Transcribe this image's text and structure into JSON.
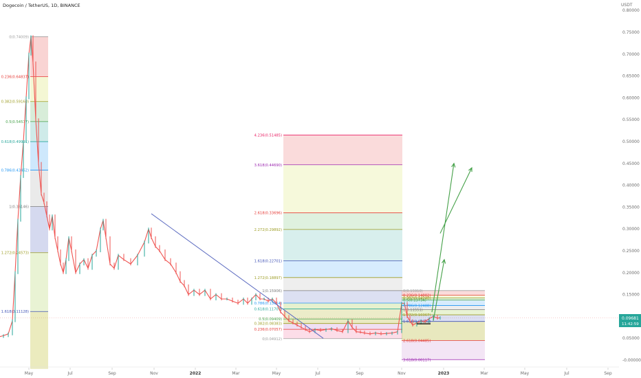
{
  "header": {
    "title": "Dogecoin / TetherUS, 1D, BINANCE"
  },
  "chart_data": {
    "type": "line",
    "currency": "USDT",
    "y_ticks": [
      "0.80000",
      "0.75000",
      "0.70000",
      "0.65000",
      "0.60000",
      "0.55000",
      "0.50000",
      "0.45000",
      "0.40000",
      "0.35000",
      "0.30000",
      "0.25000",
      "0.20000",
      "0.15000",
      "0.10000",
      "0.05000",
      "-0.00000"
    ],
    "ylim": [
      -0.008,
      0.8
    ],
    "x_ticks": [
      "May",
      "Jul",
      "Sep",
      "Nov",
      "2022",
      "Mar",
      "May",
      "Jul",
      "Sep",
      "Nov",
      "2023",
      "Mar",
      "May",
      "Jul",
      "Sep"
    ],
    "last_price": "0.09681",
    "countdown": "11:42:59",
    "price_path": [
      [
        0,
        0.054
      ],
      [
        5,
        0.056
      ],
      [
        12,
        0.06
      ],
      [
        18,
        0.09
      ],
      [
        22,
        0.2
      ],
      [
        26,
        0.32
      ],
      [
        30,
        0.42
      ],
      [
        34,
        0.5
      ],
      [
        38,
        0.6
      ],
      [
        42,
        0.7
      ],
      [
        45,
        0.74
      ],
      [
        48,
        0.68
      ],
      [
        52,
        0.55
      ],
      [
        56,
        0.45
      ],
      [
        60,
        0.38
      ],
      [
        64,
        0.36
      ],
      [
        68,
        0.33
      ],
      [
        72,
        0.3
      ],
      [
        76,
        0.33
      ],
      [
        80,
        0.28
      ],
      [
        84,
        0.25
      ],
      [
        88,
        0.22
      ],
      [
        92,
        0.2
      ],
      [
        96,
        0.23
      ],
      [
        100,
        0.28
      ],
      [
        104,
        0.25
      ],
      [
        110,
        0.2
      ],
      [
        116,
        0.22
      ],
      [
        122,
        0.23
      ],
      [
        128,
        0.21
      ],
      [
        134,
        0.24
      ],
      [
        140,
        0.25
      ],
      [
        146,
        0.3
      ],
      [
        150,
        0.32
      ],
      [
        154,
        0.28
      ],
      [
        160,
        0.22
      ],
      [
        166,
        0.21
      ],
      [
        172,
        0.24
      ],
      [
        180,
        0.23
      ],
      [
        190,
        0.22
      ],
      [
        200,
        0.24
      ],
      [
        210,
        0.27
      ],
      [
        216,
        0.3
      ],
      [
        220,
        0.28
      ],
      [
        226,
        0.26
      ],
      [
        232,
        0.25
      ],
      [
        240,
        0.23
      ],
      [
        248,
        0.22
      ],
      [
        256,
        0.2
      ],
      [
        262,
        0.18
      ],
      [
        268,
        0.17
      ],
      [
        274,
        0.15
      ],
      [
        282,
        0.16
      ],
      [
        290,
        0.15
      ],
      [
        298,
        0.16
      ],
      [
        306,
        0.14
      ],
      [
        314,
        0.15
      ],
      [
        322,
        0.14
      ],
      [
        330,
        0.14
      ],
      [
        338,
        0.135
      ],
      [
        346,
        0.13
      ],
      [
        354,
        0.14
      ],
      [
        360,
        0.13
      ],
      [
        366,
        0.14
      ],
      [
        372,
        0.15
      ],
      [
        378,
        0.14
      ],
      [
        384,
        0.14
      ],
      [
        390,
        0.135
      ],
      [
        396,
        0.14
      ],
      [
        402,
        0.13
      ],
      [
        408,
        0.11
      ],
      [
        414,
        0.1
      ],
      [
        420,
        0.09
      ],
      [
        426,
        0.085
      ],
      [
        432,
        0.08
      ],
      [
        438,
        0.075
      ],
      [
        444,
        0.07
      ],
      [
        450,
        0.065
      ],
      [
        458,
        0.07
      ],
      [
        466,
        0.068
      ],
      [
        474,
        0.07
      ],
      [
        482,
        0.072
      ],
      [
        490,
        0.068
      ],
      [
        498,
        0.065
      ],
      [
        506,
        0.09
      ],
      [
        512,
        0.075
      ],
      [
        518,
        0.065
      ],
      [
        524,
        0.064
      ],
      [
        530,
        0.062
      ],
      [
        538,
        0.06
      ],
      [
        546,
        0.062
      ],
      [
        554,
        0.06
      ],
      [
        562,
        0.061
      ],
      [
        570,
        0.062
      ],
      [
        578,
        0.065
      ],
      [
        584,
        0.13
      ],
      [
        588,
        0.13
      ],
      [
        592,
        0.1
      ],
      [
        596,
        0.09
      ],
      [
        600,
        0.08
      ],
      [
        606,
        0.085
      ],
      [
        612,
        0.09
      ],
      [
        618,
        0.088
      ],
      [
        624,
        0.095
      ],
      [
        630,
        0.1
      ],
      [
        636,
        0.096
      ],
      [
        640,
        0.097
      ]
    ],
    "trendline": [
      [
        220,
        0.335
      ],
      [
        470,
        0.05
      ]
    ],
    "fib_retracement_1": {
      "x_range": [
        44,
        70
      ],
      "levels": [
        {
          "label": "0(0.74009)",
          "value": 0.74009,
          "color": "#9e9e9e"
        },
        {
          "label": "0.236(0.64837)",
          "value": 0.64837,
          "color": "#e53935"
        },
        {
          "label": "0.382(0.59160)",
          "value": 0.5916,
          "color": "#9c9c22"
        },
        {
          "label": "0.5(0.54577)",
          "value": 0.54577,
          "color": "#43a047"
        },
        {
          "label": "0.618(0.49991)",
          "value": 0.49991,
          "color": "#26a69a"
        },
        {
          "label": "0.786(0.43462)",
          "value": 0.43462,
          "color": "#2196f3"
        },
        {
          "label": "1(0.35146)",
          "value": 0.35146,
          "color": "#7b7b7b"
        },
        {
          "label": "1.272(0.24573)",
          "value": 0.24573,
          "color": "#9c9c22"
        },
        {
          "label": "1.618(0.11128)",
          "value": 0.11128,
          "color": "#3f51b5"
        }
      ],
      "bottom_value": -0.02,
      "bands": [
        "rgba(229,57,53,0.22)",
        "rgba(205,220,57,0.22)",
        "rgba(76,175,80,0.22)",
        "rgba(38,166,154,0.22)",
        "rgba(33,150,243,0.22)",
        "rgba(158,158,158,0.22)",
        "rgba(63,81,181,0.22)",
        "rgba(156,200,60,0.22)",
        "rgba(190,190,40,0.3)"
      ]
    },
    "fib_retracement_2": {
      "x_range": [
        412,
        585
      ],
      "levels": [
        {
          "label": "0(0.04912)",
          "value": 0.04912,
          "color": "#9e9e9e"
        },
        {
          "label": "0.236(0.07057)",
          "value": 0.07057,
          "color": "#e53935"
        },
        {
          "label": "0.382(0.08383)",
          "value": 0.08383,
          "color": "#9c9c22"
        },
        {
          "label": "0.5(0.09409)",
          "value": 0.09409,
          "color": "#43a047"
        },
        {
          "label": "0.618(0.11707)",
          "value": 0.11707,
          "color": "#26a69a"
        },
        {
          "label": "0.786(0.13054)",
          "value": 0.13054,
          "color": "#2196f3"
        },
        {
          "label": "1(0.15906)",
          "value": 0.15906,
          "color": "#7b7b7b"
        },
        {
          "label": "1.272(0.18897)",
          "value": 0.18897,
          "color": "#9c9c22"
        },
        {
          "label": "1.618(0.22701)",
          "value": 0.22701,
          "color": "#3f51b5"
        },
        {
          "label": "2.272(0.29892)",
          "value": 0.29892,
          "color": "#9c9c22"
        },
        {
          "label": "2.618(0.33696)",
          "value": 0.33696,
          "color": "#e53935"
        },
        {
          "label": "3.618(0.44690)",
          "value": 0.4469,
          "color": "#9c27b0"
        },
        {
          "label": "4.236(0.51485)",
          "value": 0.51485,
          "color": "#e91e63"
        }
      ],
      "bands": [
        "rgba(229,57,53,0.18)",
        "rgba(205,220,57,0.18)",
        "rgba(76,175,80,0.18)",
        "rgba(38,166,154,0.18)",
        "rgba(33,150,243,0.18)",
        "rgba(158,158,158,0.18)",
        "rgba(63,81,181,0.18)",
        "rgba(156,200,60,0.25)",
        "rgba(180,180,40,0.25)",
        "rgba(180,180,40,0.28)",
        "rgba(156,39,176,0.15)",
        "rgba(233,30,99,0.15)"
      ]
    },
    "fib_retracement_3": {
      "x_range": [
        584,
        705
      ],
      "levels": [
        {
          "label": "0(0.15910)",
          "value": 0.1591,
          "color": "#9e9e9e"
        },
        {
          "label": "0.236(0.14882)",
          "value": 0.14882,
          "color": "#e53935"
        },
        {
          "label": "0.382(0.14248)",
          "value": 0.14248,
          "color": "#9c9c22"
        },
        {
          "label": "0.5(0.13734)",
          "value": 0.13734,
          "color": "#43a047"
        },
        {
          "label": "0.786(0.12488)",
          "value": 0.12488,
          "color": "#2196f3"
        },
        {
          "label": "1(0.11551)",
          "value": 0.11551,
          "color": "#7b7b7b"
        },
        {
          "label": "1.272(0.10367)",
          "value": 0.10367,
          "color": "#9c9c22"
        },
        {
          "label": "1.618(0.08852)",
          "value": 0.08852,
          "color": "#3f51b5"
        },
        {
          "label": "2.618(0.04485)",
          "value": 0.04485,
          "color": "#e53935"
        },
        {
          "label": "3.618(0.00117)",
          "value": 0.00117,
          "color": "#9c27b0"
        }
      ],
      "bands": [
        "rgba(229,57,53,0.18)",
        "rgba(205,220,57,0.18)",
        "rgba(76,175,80,0.18)",
        "rgba(33,150,243,0.18)",
        "rgba(158,158,158,0.18)",
        "rgba(156,200,60,0.22)",
        "rgba(63,81,181,0.18)",
        "rgba(180,180,40,0.3)",
        "rgba(156,39,176,0.12)"
      ]
    },
    "arrows": [
      [
        [
          628,
          0.11
        ],
        [
          660,
          0.45
        ]
      ],
      [
        [
          640,
          0.29
        ],
        [
          686,
          0.44
        ]
      ],
      [
        [
          630,
          0.09
        ],
        [
          646,
          0.23
        ]
      ]
    ],
    "colors": {
      "up": "#26a69a",
      "down": "#ef5350",
      "trendline": "#5c6bc0",
      "arrow": "#43a047",
      "price_tag": "#26a69a"
    }
  }
}
